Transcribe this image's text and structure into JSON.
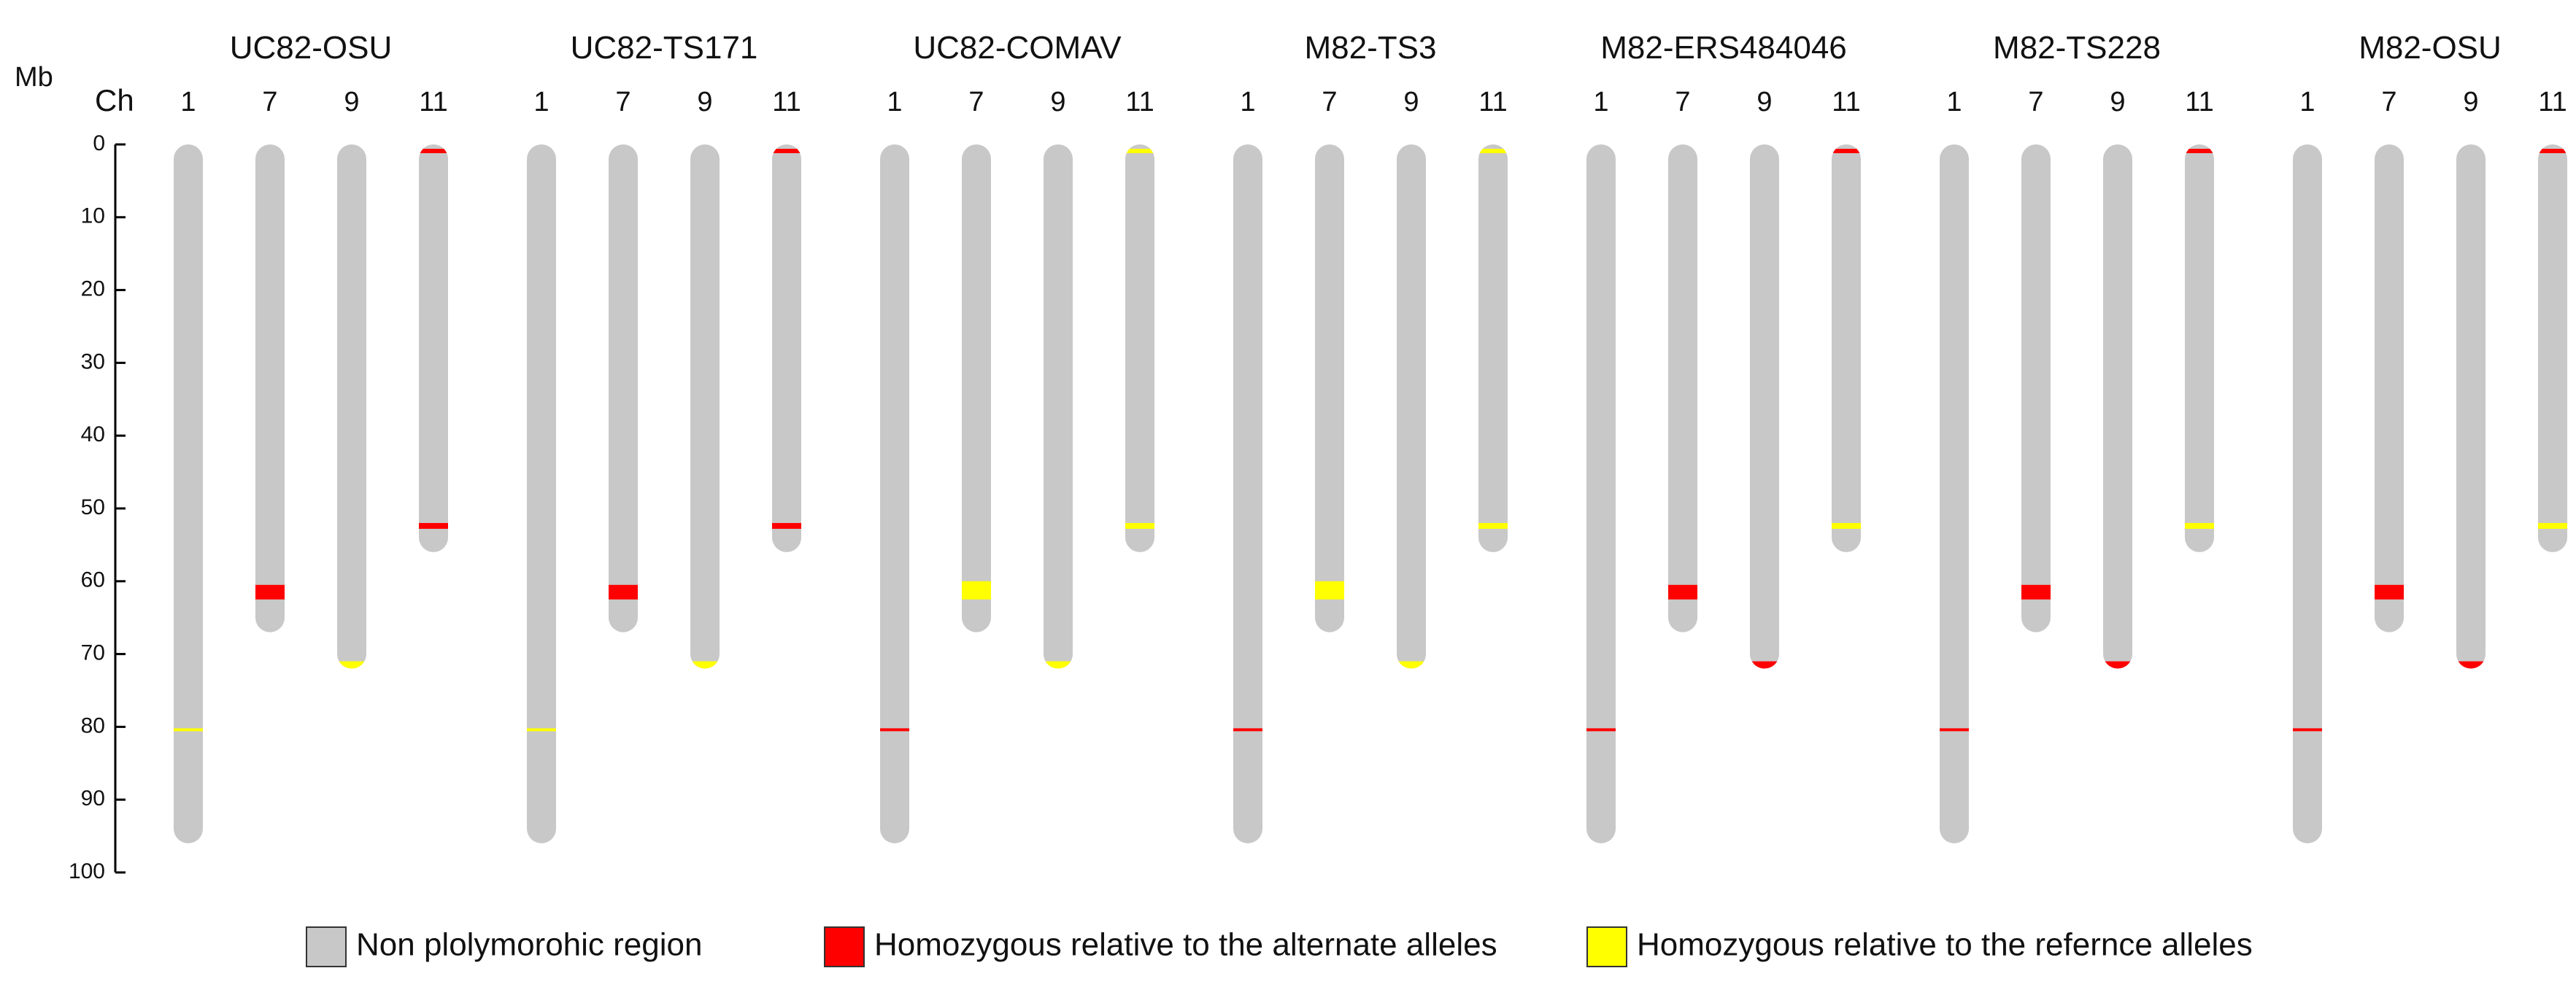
{
  "chart_data": {
    "type": "chromosome-ideogram",
    "axis_unit_label": "Mb",
    "chromosome_header_label": "Ch",
    "y_ticks": [
      0,
      10,
      20,
      30,
      40,
      50,
      60,
      70,
      80,
      90,
      100
    ],
    "ylim": [
      0,
      100
    ],
    "chromosome_lengths": {
      "1": 96,
      "7": 67,
      "9": 72,
      "11": 56
    },
    "colors": {
      "non_polymorphic": "#c8c8c8",
      "alternate": "#ff0000",
      "reference": "#ffff00",
      "text": "#111111",
      "axis": "#000000"
    },
    "legend": [
      {
        "label": "Non plolymorohic region",
        "color_key": "non_polymorphic"
      },
      {
        "label": "Homozygous relative to the alternate alleles",
        "color_key": "alternate"
      },
      {
        "label": "Homozygous relative to the refernce alleles",
        "color_key": "reference"
      }
    ],
    "samples": [
      {
        "name": "UC82-OSU",
        "chromosomes": [
          {
            "id": "1",
            "segments": [
              {
                "start": 80.2,
                "end": 80.6,
                "type": "reference"
              }
            ]
          },
          {
            "id": "7",
            "segments": [
              {
                "start": 60.5,
                "end": 62.5,
                "type": "alternate"
              }
            ]
          },
          {
            "id": "9",
            "segments": [
              {
                "start": 71.0,
                "end": 72.0,
                "type": "reference"
              }
            ]
          },
          {
            "id": "11",
            "segments": [
              {
                "start": 0.6,
                "end": 1.2,
                "type": "alternate"
              },
              {
                "start": 52.0,
                "end": 52.8,
                "type": "alternate"
              }
            ]
          }
        ]
      },
      {
        "name": "UC82-TS171",
        "chromosomes": [
          {
            "id": "1",
            "segments": [
              {
                "start": 80.2,
                "end": 80.6,
                "type": "reference"
              }
            ]
          },
          {
            "id": "7",
            "segments": [
              {
                "start": 60.5,
                "end": 62.5,
                "type": "alternate"
              }
            ]
          },
          {
            "id": "9",
            "segments": [
              {
                "start": 71.0,
                "end": 72.0,
                "type": "reference"
              }
            ]
          },
          {
            "id": "11",
            "segments": [
              {
                "start": 0.6,
                "end": 1.2,
                "type": "alternate"
              },
              {
                "start": 52.0,
                "end": 52.8,
                "type": "alternate"
              }
            ]
          }
        ]
      },
      {
        "name": "UC82-COMAV",
        "chromosomes": [
          {
            "id": "1",
            "segments": [
              {
                "start": 80.2,
                "end": 80.6,
                "type": "alternate"
              }
            ]
          },
          {
            "id": "7",
            "segments": [
              {
                "start": 60.0,
                "end": 62.5,
                "type": "reference"
              }
            ]
          },
          {
            "id": "9",
            "segments": [
              {
                "start": 71.0,
                "end": 72.0,
                "type": "reference"
              }
            ]
          },
          {
            "id": "11",
            "segments": [
              {
                "start": 0.6,
                "end": 1.2,
                "type": "reference"
              },
              {
                "start": 52.0,
                "end": 52.8,
                "type": "reference"
              }
            ]
          }
        ]
      },
      {
        "name": "M82-TS3",
        "chromosomes": [
          {
            "id": "1",
            "segments": [
              {
                "start": 80.2,
                "end": 80.6,
                "type": "alternate"
              }
            ]
          },
          {
            "id": "7",
            "segments": [
              {
                "start": 60.0,
                "end": 62.5,
                "type": "reference"
              }
            ]
          },
          {
            "id": "9",
            "segments": [
              {
                "start": 71.0,
                "end": 72.0,
                "type": "reference"
              }
            ]
          },
          {
            "id": "11",
            "segments": [
              {
                "start": 0.6,
                "end": 1.2,
                "type": "reference"
              },
              {
                "start": 52.0,
                "end": 52.8,
                "type": "reference"
              }
            ]
          }
        ]
      },
      {
        "name": "M82-ERS484046",
        "chromosomes": [
          {
            "id": "1",
            "segments": [
              {
                "start": 80.2,
                "end": 80.6,
                "type": "alternate"
              }
            ]
          },
          {
            "id": "7",
            "segments": [
              {
                "start": 60.5,
                "end": 62.5,
                "type": "alternate"
              }
            ]
          },
          {
            "id": "9",
            "segments": [
              {
                "start": 71.0,
                "end": 72.0,
                "type": "alternate"
              }
            ]
          },
          {
            "id": "11",
            "segments": [
              {
                "start": 0.6,
                "end": 1.2,
                "type": "alternate"
              },
              {
                "start": 52.0,
                "end": 52.8,
                "type": "reference"
              }
            ]
          }
        ]
      },
      {
        "name": "M82-TS228",
        "chromosomes": [
          {
            "id": "1",
            "segments": [
              {
                "start": 80.2,
                "end": 80.6,
                "type": "alternate"
              }
            ]
          },
          {
            "id": "7",
            "segments": [
              {
                "start": 60.5,
                "end": 62.5,
                "type": "alternate"
              }
            ]
          },
          {
            "id": "9",
            "segments": [
              {
                "start": 71.0,
                "end": 72.0,
                "type": "alternate"
              }
            ]
          },
          {
            "id": "11",
            "segments": [
              {
                "start": 0.6,
                "end": 1.2,
                "type": "alternate"
              },
              {
                "start": 52.0,
                "end": 52.8,
                "type": "reference"
              }
            ]
          }
        ]
      },
      {
        "name": "M82-OSU",
        "chromosomes": [
          {
            "id": "1",
            "segments": [
              {
                "start": 80.2,
                "end": 80.6,
                "type": "alternate"
              }
            ]
          },
          {
            "id": "7",
            "segments": [
              {
                "start": 60.5,
                "end": 62.5,
                "type": "alternate"
              }
            ]
          },
          {
            "id": "9",
            "segments": [
              {
                "start": 71.0,
                "end": 72.0,
                "type": "alternate"
              }
            ]
          },
          {
            "id": "11",
            "segments": [
              {
                "start": 0.6,
                "end": 1.2,
                "type": "alternate"
              },
              {
                "start": 52.0,
                "end": 52.8,
                "type": "reference"
              }
            ]
          }
        ]
      }
    ]
  }
}
